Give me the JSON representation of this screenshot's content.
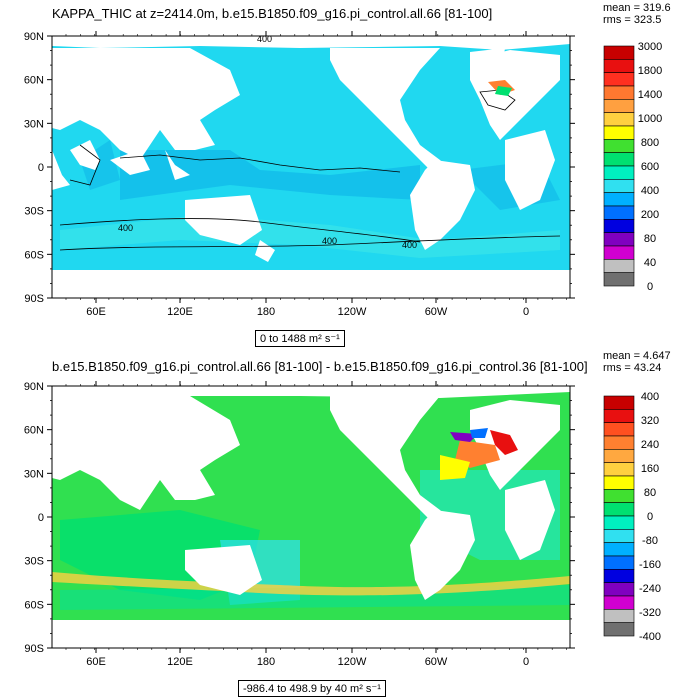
{
  "panel1": {
    "title": "KAPPA_THIC at z=2414.0m, b.e15.B1850.f09_g16.pi_control.all.66 [81-100]",
    "mean": "mean = 319.6",
    "rms": "rms = 323.5",
    "range": "0 to 1488 m² s⁻¹",
    "contour_labels": [
      "400",
      "400",
      "400",
      "400"
    ],
    "colorbar": {
      "labels": [
        "3000",
        "1800",
        "1400",
        "1000",
        "800",
        "600",
        "400",
        "200",
        "80",
        "40",
        "0"
      ],
      "colors": [
        "#c80000",
        "#e81010",
        "#ff3020",
        "#ff7830",
        "#ffa040",
        "#ffd040",
        "#ffff00",
        "#40e030",
        "#00e070",
        "#00f0c0",
        "#30e0f0",
        "#00b0ff",
        "#0070ff",
        "#0000e0",
        "#8000c0",
        "#d000d0",
        "#c0c0c0",
        "#707070"
      ]
    }
  },
  "panel2": {
    "title": "b.e15.B1850.f09_g16.pi_control.all.66 [81-100] - b.e15.B1850.f09_g16.pi_control.36 [81-100]",
    "mean": "mean = 4.647",
    "rms": "rms = 43.24",
    "range": "-986.4 to 498.9 by 40 m² s⁻¹",
    "colorbar": {
      "labels": [
        "400",
        "320",
        "240",
        "160",
        "80",
        "0",
        "-80",
        "-160",
        "-240",
        "-320",
        "-400"
      ],
      "colors": [
        "#c80000",
        "#e81010",
        "#ff5020",
        "#ff8030",
        "#ffa840",
        "#ffd040",
        "#ffff00",
        "#40e030",
        "#00e070",
        "#00f0c0",
        "#30e0f0",
        "#00b0ff",
        "#0070ff",
        "#0000e0",
        "#8000c0",
        "#d000d0",
        "#c0c0c0",
        "#707070"
      ]
    }
  },
  "axes": {
    "lat_labels": [
      "90N",
      "60N",
      "30N",
      "0",
      "30S",
      "60S",
      "90S"
    ],
    "lon_labels": [
      "60E",
      "120E",
      "180",
      "120W",
      "60W",
      "0"
    ]
  },
  "colors": {
    "ocean_panel1": "#20d8f0",
    "ocean_panel1_dark": "#10b8e8",
    "ocean_panel2": "#30e050",
    "land": "#ffffff"
  }
}
